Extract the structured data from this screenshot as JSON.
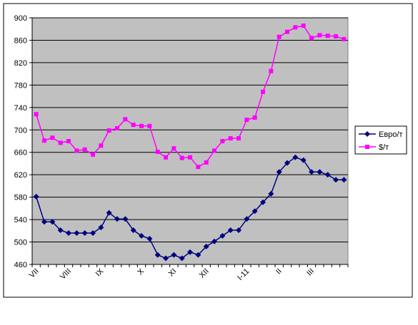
{
  "chart_data": {
    "type": "line",
    "categories": [
      "VII",
      null,
      null,
      null,
      "VIII",
      null,
      null,
      null,
      "IX",
      null,
      null,
      null,
      null,
      "X",
      null,
      null,
      null,
      "XI",
      null,
      null,
      null,
      "XII",
      null,
      null,
      null,
      null,
      "I-11",
      null,
      null,
      null,
      "II",
      null,
      null,
      null,
      "III",
      null,
      null,
      null,
      null
    ],
    "series": [
      {
        "name": "Евро/т",
        "color": "#000080",
        "marker": "diamond",
        "values": [
          581,
          536,
          536,
          521,
          516,
          516,
          516,
          516,
          526,
          552,
          541,
          541,
          521,
          511,
          506,
          477,
          471,
          477,
          471,
          482,
          477,
          492,
          501,
          511,
          521,
          521,
          541,
          555,
          571,
          586,
          625,
          641,
          651,
          646,
          625,
          625,
          620,
          611,
          611
        ]
      },
      {
        "name": "$/т",
        "color": "#ff00ff",
        "marker": "square",
        "values": [
          728,
          681,
          686,
          677,
          680,
          663,
          665,
          656,
          672,
          699,
          703,
          719,
          709,
          707,
          707,
          661,
          651,
          667,
          650,
          651,
          634,
          642,
          663,
          680,
          685,
          685,
          718,
          722,
          768,
          805,
          866,
          875,
          883,
          886,
          864,
          869,
          868,
          867,
          862
        ]
      }
    ],
    "ylim": [
      460,
      900
    ],
    "yticks": [
      460,
      500,
      540,
      580,
      620,
      660,
      700,
      740,
      780,
      820,
      860,
      900
    ],
    "grid": true,
    "legend": "right",
    "plot_background": "#c0c0c0"
  }
}
